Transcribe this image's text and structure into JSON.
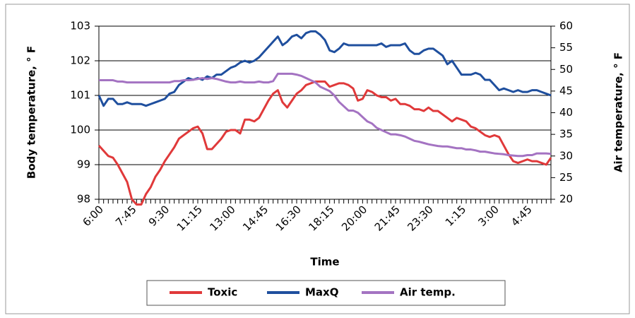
{
  "chart_data": {
    "type": "line",
    "x_label": "Time",
    "y_label": "Body temperature, ° F",
    "y2_label": "Air temperature, ° F",
    "categories": [
      "6:00",
      null,
      null,
      null,
      null,
      null,
      null,
      "7:45",
      null,
      null,
      null,
      null,
      null,
      null,
      "9:30",
      null,
      null,
      null,
      null,
      null,
      null,
      "11:15",
      null,
      null,
      null,
      null,
      null,
      null,
      "13:00",
      null,
      null,
      null,
      null,
      null,
      null,
      "14:45",
      null,
      null,
      null,
      null,
      null,
      null,
      "16:30",
      null,
      null,
      null,
      null,
      null,
      null,
      "18:15",
      null,
      null,
      null,
      null,
      null,
      null,
      "20:00",
      null,
      null,
      null,
      null,
      null,
      null,
      "21:45",
      null,
      null,
      null,
      null,
      null,
      null,
      "23:30",
      null,
      null,
      null,
      null,
      null,
      null,
      "1:15",
      null,
      null,
      null,
      null,
      null,
      null,
      "3:00",
      null,
      null,
      null,
      null,
      null,
      null,
      "4:45",
      null,
      null,
      null,
      null,
      null
    ],
    "series": [
      {
        "name": "Toxic",
        "color": "#e0393a",
        "values": [
          99.55,
          99.4,
          99.25,
          99.2,
          99,
          98.75,
          98.5,
          98,
          97.85,
          97.85,
          98.15,
          98.35,
          98.65,
          98.85,
          99.1,
          99.3,
          99.5,
          99.75,
          99.85,
          99.95,
          100.05,
          100.1,
          99.9,
          99.45,
          99.45,
          99.6,
          99.75,
          99.95,
          100,
          100,
          99.9,
          100.3,
          100.3,
          100.25,
          100.35,
          100.6,
          100.85,
          101.05,
          101.15,
          100.8,
          100.65,
          100.85,
          101.05,
          101.15,
          101.3,
          101.35,
          101.4,
          101.4,
          101.4,
          101.25,
          101.3,
          101.35,
          101.35,
          101.3,
          101.2,
          100.85,
          100.9,
          101.15,
          101.1,
          101,
          100.95,
          100.95,
          100.85,
          100.9,
          100.75,
          100.75,
          100.7,
          100.6,
          100.6,
          100.55,
          100.65,
          100.55,
          100.55,
          100.45,
          100.35,
          100.25,
          100.35,
          100.3,
          100.25,
          100.1,
          100.05,
          99.95,
          99.85,
          99.8,
          99.85,
          99.8,
          99.55,
          99.3,
          99.1,
          99.05,
          99.1,
          99.15,
          99.1,
          99.1,
          99.05,
          99,
          99.2
        ]
      },
      {
        "name": "MaxQ",
        "color": "#1f4f9e",
        "values": [
          101,
          100.7,
          100.9,
          100.9,
          100.75,
          100.75,
          100.8,
          100.75,
          100.75,
          100.75,
          100.7,
          100.75,
          100.8,
          100.85,
          100.9,
          101.05,
          101.1,
          101.3,
          101.4,
          101.5,
          101.45,
          101.5,
          101.45,
          101.55,
          101.5,
          101.6,
          101.6,
          101.7,
          101.8,
          101.85,
          101.95,
          102,
          101.95,
          102,
          102.1,
          102.25,
          102.4,
          102.55,
          102.7,
          102.45,
          102.55,
          102.7,
          102.75,
          102.65,
          102.8,
          102.85,
          102.85,
          102.75,
          102.6,
          102.3,
          102.25,
          102.35,
          102.5,
          102.45,
          102.45,
          102.45,
          102.45,
          102.45,
          102.45,
          102.45,
          102.5,
          102.4,
          102.45,
          102.45,
          102.45,
          102.5,
          102.3,
          102.2,
          102.2,
          102.3,
          102.35,
          102.35,
          102.25,
          102.15,
          101.9,
          102,
          101.8,
          101.6,
          101.6,
          101.6,
          101.65,
          101.6,
          101.45,
          101.45,
          101.3,
          101.15,
          101.2,
          101.15,
          101.1,
          101.15,
          101.1,
          101.1,
          101.15,
          101.15,
          101.1,
          101.05,
          101
        ]
      },
      {
        "name": "Air temp.",
        "color": "#a473c2",
        "axis": "y2",
        "values": [
          47.5,
          47.5,
          47.5,
          47.5,
          47.2,
          47.2,
          47,
          47,
          47,
          47,
          47,
          47,
          47,
          47,
          47,
          47,
          47.3,
          47.3,
          47.5,
          47.5,
          47.6,
          47.8,
          48,
          47.8,
          48,
          47.8,
          47.5,
          47.2,
          47,
          47,
          47.2,
          47,
          47,
          47,
          47.2,
          47,
          47,
          47.3,
          49,
          49,
          49,
          49,
          48.8,
          48.5,
          48,
          47.5,
          47,
          46,
          45.5,
          45,
          44,
          42.5,
          41.5,
          40.5,
          40.5,
          40,
          39,
          38,
          37.5,
          36.5,
          36,
          35.5,
          35,
          35,
          34.8,
          34.5,
          34,
          33.5,
          33.3,
          33,
          32.7,
          32.5,
          32.3,
          32.2,
          32.2,
          32,
          31.8,
          31.8,
          31.5,
          31.5,
          31.3,
          31,
          31,
          30.8,
          30.6,
          30.5,
          30.4,
          30.2,
          30.1,
          30,
          30,
          30.2,
          30.2,
          30.6,
          30.6,
          30.6,
          30.5
        ]
      }
    ],
    "ylim": [
      98,
      103
    ],
    "yticks": [
      98,
      99,
      100,
      101,
      102,
      103
    ],
    "y2lim": [
      20,
      60
    ],
    "y2ticks": [
      20,
      25,
      30,
      35,
      40,
      45,
      50,
      55,
      60
    ],
    "grid": true
  }
}
